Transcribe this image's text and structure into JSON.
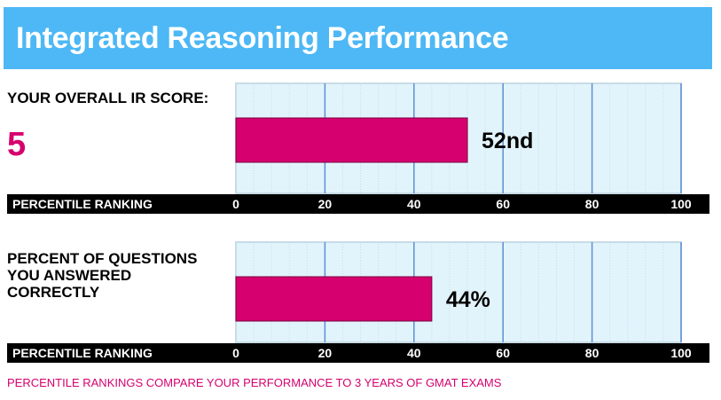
{
  "header": {
    "title": "Integrated Reasoning Performance"
  },
  "sections": [
    {
      "label": "YOUR OVERALL IR SCORE:",
      "score": "5",
      "value_label": "52nd",
      "axis_label": "PERCENTILE RANKING"
    },
    {
      "label_lines": [
        "PERCENT OF QUESTIONS",
        "YOU ANSWERED",
        "CORRECTLY"
      ],
      "value_label": "44%",
      "axis_label": "PERCENTILE RANKING"
    }
  ],
  "footnote": "PERCENTILE RANKINGS COMPARE YOUR PERFORMANCE TO 3 YEARS OF GMAT EXAMS",
  "colors": {
    "header_bg": "#4db8f5",
    "bar": "#d6006e",
    "accent_text": "#d6006e",
    "plot_bg": "#e2f4fb",
    "gridline": "#5b8fd6",
    "axis_band": "#000000"
  },
  "chart_data": [
    {
      "type": "bar",
      "orientation": "horizontal",
      "values": [
        52
      ],
      "xlim": [
        0,
        100
      ],
      "xticks": [
        0,
        20,
        40,
        60,
        80,
        100
      ],
      "xlabel": "PERCENTILE RANKING",
      "data_labels": [
        "52nd"
      ],
      "grid": true
    },
    {
      "type": "bar",
      "orientation": "horizontal",
      "values": [
        44
      ],
      "xlim": [
        0,
        100
      ],
      "xticks": [
        0,
        20,
        40,
        60,
        80,
        100
      ],
      "xlabel": "PERCENTILE RANKING",
      "data_labels": [
        "44%"
      ],
      "grid": true
    }
  ]
}
